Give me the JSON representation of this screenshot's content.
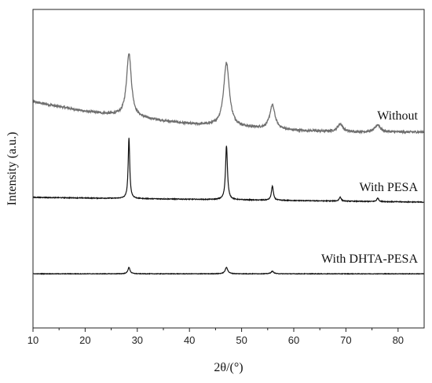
{
  "chart_data": {
    "type": "line",
    "xlabel": "2θ/(°)",
    "ylabel": "Intensity (a.u.)",
    "xlim": [
      10,
      85
    ],
    "x_ticks": [
      10,
      20,
      30,
      40,
      50,
      60,
      70,
      80
    ],
    "y_ticks_shown": false,
    "ylim": [
      0,
      100
    ],
    "grid": false,
    "legend": "none (series labeled inline at right)",
    "series": [
      {
        "name": "Without",
        "color": "#6e6e6e",
        "baseline": [
          [
            10,
            71
          ],
          [
            20,
            68
          ],
          [
            30,
            66
          ],
          [
            40,
            64
          ],
          [
            50,
            63
          ],
          [
            60,
            62
          ],
          [
            70,
            61.5
          ],
          [
            85,
            61.5
          ]
        ],
        "peaks": [
          {
            "x": 28.4,
            "height": 20,
            "width": 0.55
          },
          {
            "x": 47.1,
            "height": 20,
            "width": 0.65
          },
          {
            "x": 55.9,
            "height": 7.5,
            "width": 0.6
          },
          {
            "x": 68.9,
            "height": 2.5,
            "width": 0.6
          },
          {
            "x": 76.1,
            "height": 2.3,
            "width": 0.6
          }
        ]
      },
      {
        "name": "With PESA",
        "color": "#111111",
        "baseline": [
          [
            10,
            41
          ],
          [
            85,
            39.5
          ]
        ],
        "peaks": [
          {
            "x": 28.4,
            "height": 19,
            "width": 0.18
          },
          {
            "x": 47.1,
            "height": 17,
            "width": 0.22
          },
          {
            "x": 55.9,
            "height": 4.5,
            "width": 0.22
          },
          {
            "x": 68.9,
            "height": 1.3,
            "width": 0.22
          },
          {
            "x": 76.1,
            "height": 1.1,
            "width": 0.22
          }
        ]
      },
      {
        "name": "With DHTA-PESA",
        "color": "#111111",
        "baseline": [
          [
            10,
            17
          ],
          [
            85,
            17
          ]
        ],
        "peaks": [
          {
            "x": 28.4,
            "height": 2.0,
            "width": 0.25
          },
          {
            "x": 47.1,
            "height": 2.0,
            "width": 0.3
          },
          {
            "x": 55.9,
            "height": 0.8,
            "width": 0.3
          }
        ]
      }
    ]
  }
}
